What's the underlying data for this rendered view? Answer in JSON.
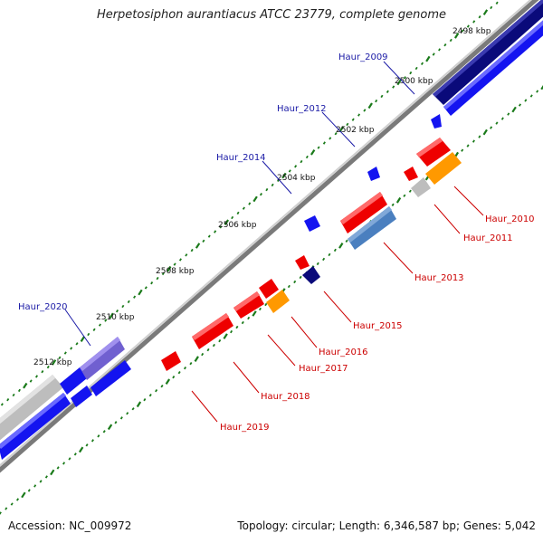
{
  "title": "Herpetosiphon aurantiacus ATCC 23779, complete genome",
  "footer": {
    "accession": "Accession: NC_009972",
    "summary": "Topology: circular; Length: 6,346,587 bp; Genes: 5,042"
  },
  "colors": {
    "forward_label": "#1a1aa6",
    "reverse_label": "#cc0000",
    "tick": "#1a7a1a",
    "backbone": "#888888"
  },
  "ticks": [
    {
      "label": "2498 kbp"
    },
    {
      "label": "2500 kbp"
    },
    {
      "label": "2502 kbp"
    },
    {
      "label": "2504 kbp"
    },
    {
      "label": "2506 kbp"
    },
    {
      "label": "2508 kbp"
    },
    {
      "label": "2510 kbp"
    },
    {
      "label": "2512 kbp"
    }
  ],
  "genes": [
    {
      "label": "Haur_2009",
      "strand": "forward",
      "color": "#1a1aff"
    },
    {
      "label": "Haur_2012",
      "strand": "forward",
      "color": "#1a1aff"
    },
    {
      "label": "Haur_2014",
      "strand": "forward",
      "color": "#1a1aff"
    },
    {
      "label": "Haur_2020",
      "strand": "forward",
      "color": "#1a1aff"
    },
    {
      "label": "Haur_2010",
      "strand": "reverse",
      "color": "#ee0000"
    },
    {
      "label": "Haur_2011",
      "strand": "reverse",
      "color": "#ee0000"
    },
    {
      "label": "Haur_2013",
      "strand": "reverse",
      "color": "#ee0000"
    },
    {
      "label": "Haur_2015",
      "strand": "reverse",
      "color": "#ee0000"
    },
    {
      "label": "Haur_2016",
      "strand": "reverse",
      "color": "#ee0000"
    },
    {
      "label": "Haur_2017",
      "strand": "reverse",
      "color": "#ee0000"
    },
    {
      "label": "Haur_2018",
      "strand": "reverse",
      "color": "#ee0000"
    },
    {
      "label": "Haur_2019",
      "strand": "reverse",
      "color": "#ee0000"
    }
  ]
}
